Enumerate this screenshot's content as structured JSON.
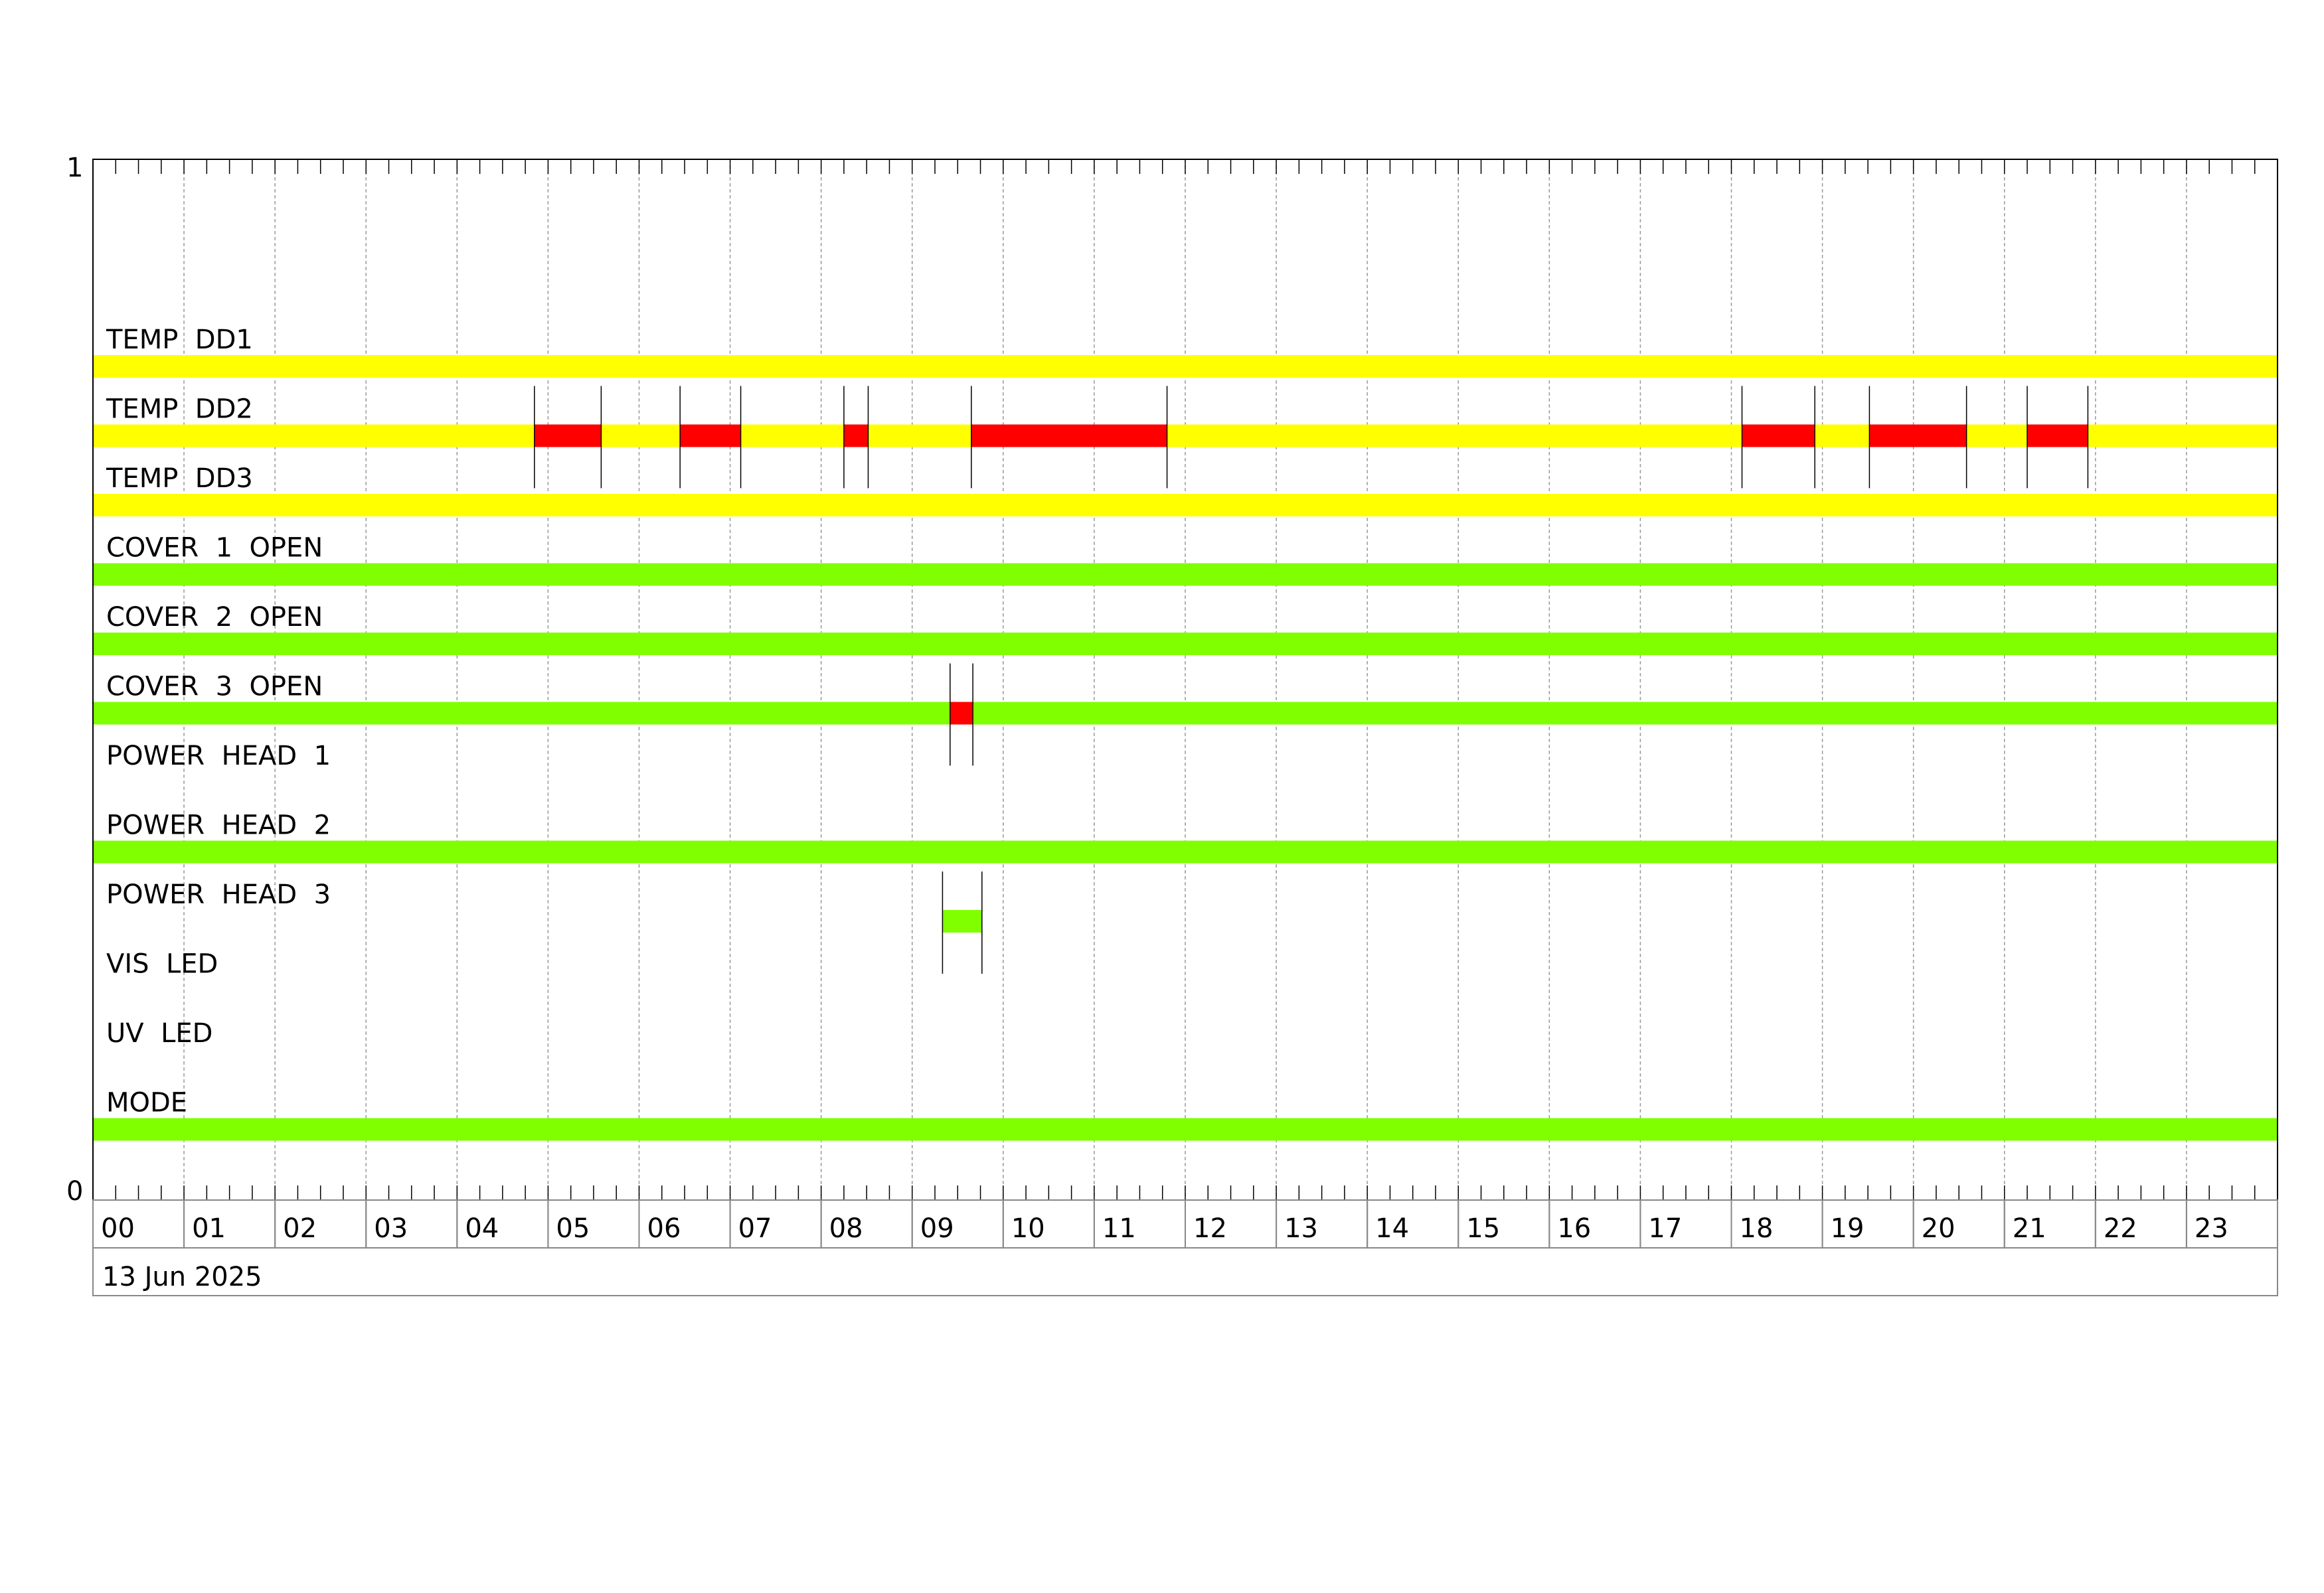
{
  "chart_data": {
    "type": "timeline",
    "title": "",
    "y_axis": {
      "top_label": "1",
      "bottom_label": "0",
      "ylim": [
        0,
        1
      ]
    },
    "x_axis": {
      "range": [
        "00:00",
        "24:00"
      ],
      "tick_labels": [
        "00",
        "01",
        "02",
        "03",
        "04",
        "05",
        "06",
        "07",
        "08",
        "09",
        "10",
        "11",
        "12",
        "13",
        "14",
        "15",
        "16",
        "17",
        "18",
        "19",
        "20",
        "21",
        "22",
        "23"
      ],
      "minor_tick_minutes": 15,
      "date_label": "13 Jun 2025"
    },
    "grid": true,
    "colors": {
      "ok_temp": "#ffff00",
      "alarm": "#ff0000",
      "ok": "#80ff00"
    },
    "rows": [
      {
        "name": "TEMP DD1",
        "segments": [
          {
            "start": "00:00",
            "end": "24:00",
            "color": "#ffff00"
          }
        ]
      },
      {
        "name": "TEMP DD2",
        "segments": [
          {
            "start": "00:00",
            "end": "04:51",
            "color": "#ffff00"
          },
          {
            "start": "04:51",
            "end": "05:35",
            "color": "#ff0000"
          },
          {
            "start": "05:35",
            "end": "06:27",
            "color": "#ffff00"
          },
          {
            "start": "06:27",
            "end": "07:07",
            "color": "#ff0000"
          },
          {
            "start": "07:07",
            "end": "08:15",
            "color": "#ffff00"
          },
          {
            "start": "08:15",
            "end": "08:31",
            "color": "#ff0000"
          },
          {
            "start": "08:31",
            "end": "09:39",
            "color": "#ffff00"
          },
          {
            "start": "09:39",
            "end": "11:48",
            "color": "#ff0000"
          },
          {
            "start": "11:48",
            "end": "18:07",
            "color": "#ffff00"
          },
          {
            "start": "18:07",
            "end": "18:55",
            "color": "#ff0000"
          },
          {
            "start": "18:55",
            "end": "19:31",
            "color": "#ffff00"
          },
          {
            "start": "19:31",
            "end": "20:35",
            "color": "#ff0000"
          },
          {
            "start": "20:35",
            "end": "21:15",
            "color": "#ffff00"
          },
          {
            "start": "21:15",
            "end": "21:55",
            "color": "#ff0000"
          },
          {
            "start": "21:55",
            "end": "24:00",
            "color": "#ffff00"
          }
        ]
      },
      {
        "name": "TEMP DD3",
        "segments": [
          {
            "start": "00:00",
            "end": "24:00",
            "color": "#ffff00"
          }
        ]
      },
      {
        "name": "COVER 1 OPEN",
        "segments": [
          {
            "start": "00:00",
            "end": "24:00",
            "color": "#80ff00"
          }
        ]
      },
      {
        "name": "COVER 2 OPEN",
        "segments": [
          {
            "start": "00:00",
            "end": "24:00",
            "color": "#80ff00"
          }
        ]
      },
      {
        "name": "COVER 3 OPEN",
        "segments": [
          {
            "start": "00:00",
            "end": "09:25",
            "color": "#80ff00"
          },
          {
            "start": "09:25",
            "end": "09:40",
            "color": "#ff0000"
          },
          {
            "start": "09:40",
            "end": "24:00",
            "color": "#80ff00"
          }
        ]
      },
      {
        "name": "POWER HEAD 1",
        "segments": []
      },
      {
        "name": "POWER HEAD 2",
        "segments": [
          {
            "start": "00:00",
            "end": "24:00",
            "color": "#80ff00"
          }
        ]
      },
      {
        "name": "POWER HEAD 3",
        "segments": [
          {
            "start": "09:20",
            "end": "09:46",
            "color": "#80ff00"
          }
        ]
      },
      {
        "name": "VIS LED",
        "segments": []
      },
      {
        "name": "UV LED",
        "segments": []
      },
      {
        "name": "MODE",
        "segments": [
          {
            "start": "00:00",
            "end": "24:00",
            "color": "#80ff00"
          }
        ]
      }
    ]
  }
}
